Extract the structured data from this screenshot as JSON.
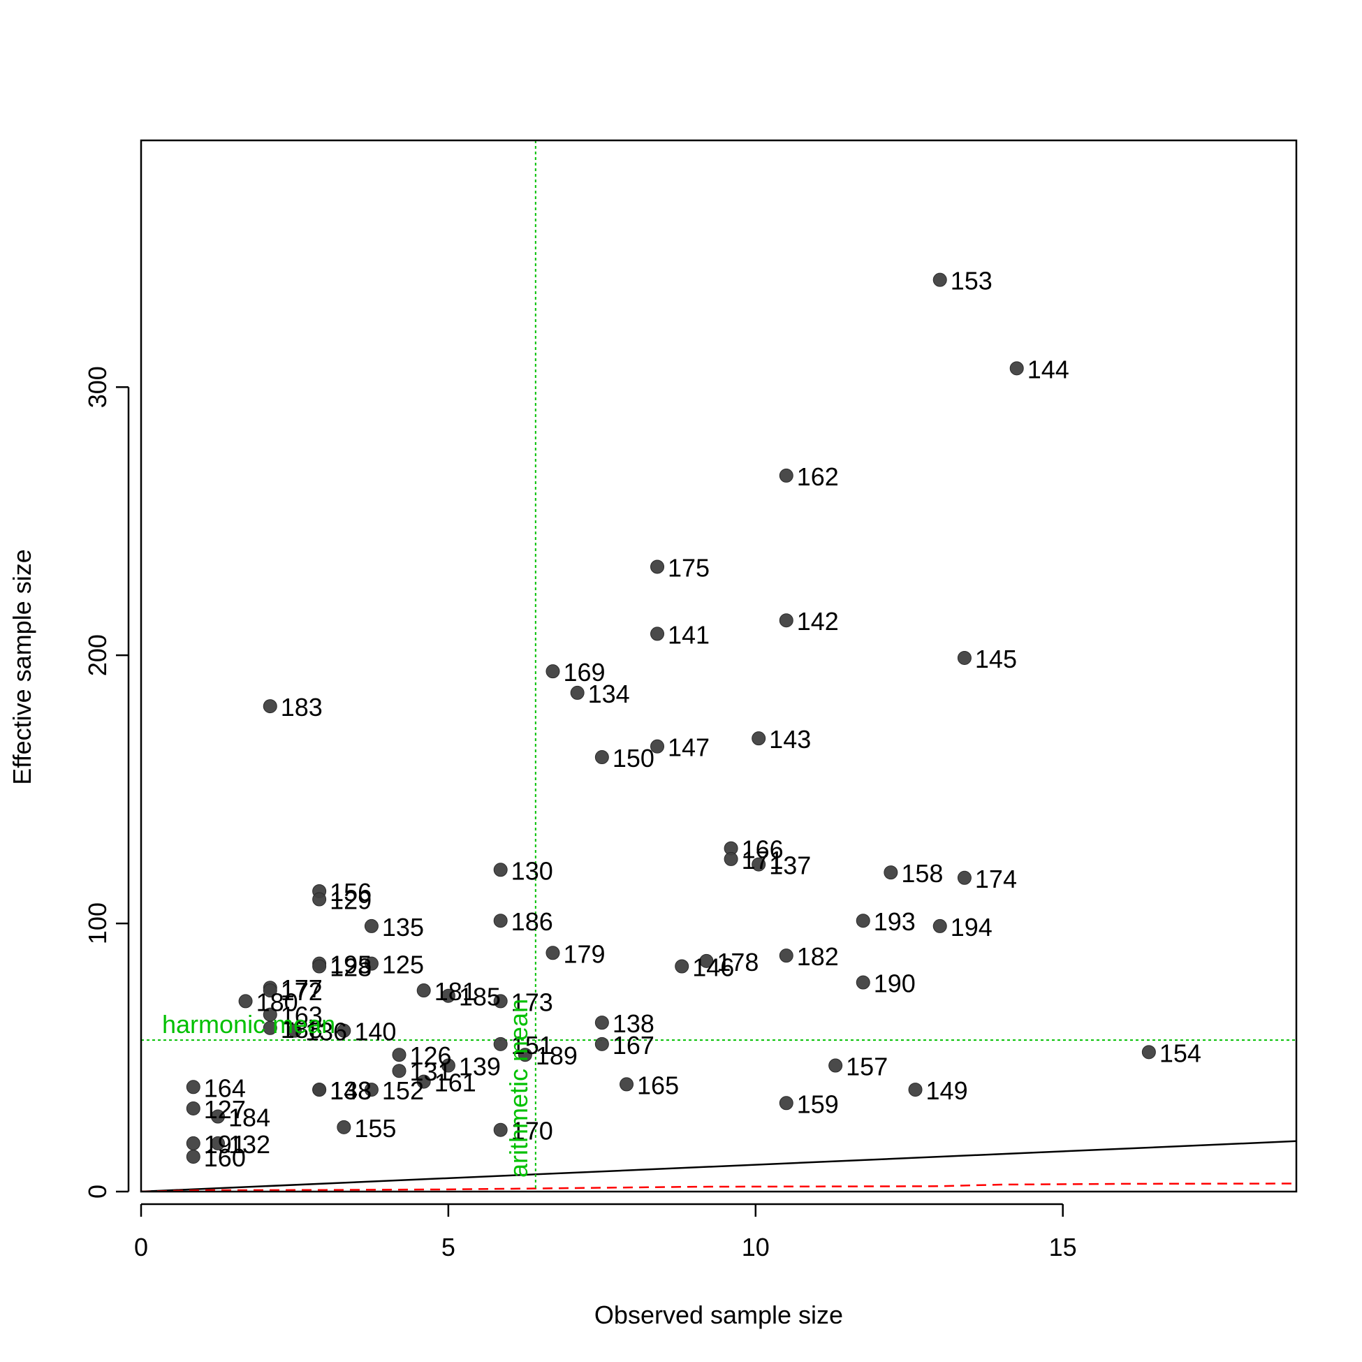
{
  "chart_data": {
    "type": "scatter",
    "xlabel": "Observed sample size",
    "ylabel": "Effective sample size",
    "xlim": [
      0,
      18.8
    ],
    "ylim": [
      0,
      392
    ],
    "xticks": [
      0,
      5,
      10,
      15
    ],
    "xtick_labels": [
      "0",
      "5",
      "10",
      "15"
    ],
    "yticks": [
      0,
      100,
      200,
      300
    ],
    "ytick_labels": [
      "0",
      "100",
      "200",
      "300"
    ],
    "grid": false,
    "legend": "none",
    "point_color": "#404040",
    "points": [
      {
        "label": "153",
        "x": 13.0,
        "y": 340
      },
      {
        "label": "144",
        "x": 14.25,
        "y": 307
      },
      {
        "label": "162",
        "x": 10.5,
        "y": 267
      },
      {
        "label": "175",
        "x": 8.4,
        "y": 233
      },
      {
        "label": "142",
        "x": 10.5,
        "y": 213
      },
      {
        "label": "141",
        "x": 8.4,
        "y": 208
      },
      {
        "label": "145",
        "x": 13.4,
        "y": 199
      },
      {
        "label": "169",
        "x": 6.7,
        "y": 194
      },
      {
        "label": "134",
        "x": 7.1,
        "y": 186
      },
      {
        "label": "183",
        "x": 2.1,
        "y": 181
      },
      {
        "label": "143",
        "x": 10.05,
        "y": 169
      },
      {
        "label": "147",
        "x": 8.4,
        "y": 166
      },
      {
        "label": "150",
        "x": 7.5,
        "y": 162
      },
      {
        "label": "166",
        "x": 9.6,
        "y": 128
      },
      {
        "label": "171",
        "x": 9.6,
        "y": 124
      },
      {
        "label": "137",
        "x": 10.05,
        "y": 122
      },
      {
        "label": "130",
        "x": 5.85,
        "y": 120
      },
      {
        "label": "158",
        "x": 12.2,
        "y": 119
      },
      {
        "label": "174",
        "x": 13.4,
        "y": 117
      },
      {
        "label": "156",
        "x": 2.9,
        "y": 112
      },
      {
        "label": "129",
        "x": 2.9,
        "y": 109
      },
      {
        "label": "186",
        "x": 5.85,
        "y": 101
      },
      {
        "label": "193",
        "x": 11.75,
        "y": 101
      },
      {
        "label": "135",
        "x": 3.75,
        "y": 99
      },
      {
        "label": "194",
        "x": 13.0,
        "y": 99
      },
      {
        "label": "179",
        "x": 6.7,
        "y": 89
      },
      {
        "label": "182",
        "x": 10.5,
        "y": 88
      },
      {
        "label": "178",
        "x": 9.2,
        "y": 86
      },
      {
        "label": "195",
        "x": 2.9,
        "y": 85
      },
      {
        "label": "128",
        "x": 2.9,
        "y": 84
      },
      {
        "label": "125",
        "x": 3.75,
        "y": 85
      },
      {
        "label": "146",
        "x": 8.8,
        "y": 84
      },
      {
        "label": "190",
        "x": 11.75,
        "y": 78
      },
      {
        "label": "177",
        "x": 2.1,
        "y": 76
      },
      {
        "label": "172",
        "x": 2.1,
        "y": 75
      },
      {
        "label": "181",
        "x": 4.6,
        "y": 75
      },
      {
        "label": "185",
        "x": 5.0,
        "y": 73
      },
      {
        "label": "173",
        "x": 5.85,
        "y": 71
      },
      {
        "label": "180",
        "x": 1.7,
        "y": 71
      },
      {
        "label": "163",
        "x": 2.1,
        "y": 66
      },
      {
        "label": "138",
        "x": 7.5,
        "y": 63
      },
      {
        "label": "188",
        "x": 2.1,
        "y": 61
      },
      {
        "label": "136",
        "x": 2.5,
        "y": 60
      },
      {
        "label": "140",
        "x": 3.3,
        "y": 60
      },
      {
        "label": "151",
        "x": 5.85,
        "y": 55
      },
      {
        "label": "167",
        "x": 7.5,
        "y": 55
      },
      {
        "label": "154",
        "x": 16.4,
        "y": 52
      },
      {
        "label": "189",
        "x": 6.25,
        "y": 51
      },
      {
        "label": "126",
        "x": 4.2,
        "y": 51
      },
      {
        "label": "157",
        "x": 11.3,
        "y": 47
      },
      {
        "label": "139",
        "x": 5.0,
        "y": 47
      },
      {
        "label": "131",
        "x": 4.2,
        "y": 45
      },
      {
        "label": "161",
        "x": 4.6,
        "y": 41
      },
      {
        "label": "165",
        "x": 7.9,
        "y": 40
      },
      {
        "label": "164",
        "x": 0.85,
        "y": 39
      },
      {
        "label": "148",
        "x": 2.9,
        "y": 38
      },
      {
        "label": "133",
        "x": 2.9,
        "y": 38
      },
      {
        "label": "152",
        "x": 3.75,
        "y": 38
      },
      {
        "label": "149",
        "x": 12.6,
        "y": 38
      },
      {
        "label": "159",
        "x": 10.5,
        "y": 33
      },
      {
        "label": "127",
        "x": 0.85,
        "y": 31
      },
      {
        "label": "184",
        "x": 1.25,
        "y": 28
      },
      {
        "label": "155",
        "x": 3.3,
        "y": 24
      },
      {
        "label": "170",
        "x": 5.85,
        "y": 23
      },
      {
        "label": "191",
        "x": 0.85,
        "y": 18
      },
      {
        "label": "132",
        "x": 1.25,
        "y": 18
      },
      {
        "label": "160",
        "x": 0.85,
        "y": 13
      }
    ],
    "reference_lines": [
      {
        "label": "harmonic mean",
        "orientation": "horizontal",
        "value": 56.5,
        "color": "#00c000",
        "style": "dotted"
      },
      {
        "label": "arithmetic mean",
        "orientation": "vertical",
        "value": 6.42,
        "color": "#00c000",
        "style": "dotted"
      }
    ],
    "lines": [
      {
        "color": "#000000",
        "style": "solid",
        "points": [
          [
            0,
            0
          ],
          [
            18.8,
            18.8
          ]
        ]
      },
      {
        "color": "#ff0000",
        "style": "dashed",
        "points": [
          [
            0,
            0
          ],
          [
            1,
            0.5
          ],
          [
            3,
            0.6
          ],
          [
            5,
            0.8
          ],
          [
            7,
            1.3
          ],
          [
            9,
            1.8
          ],
          [
            11,
            1.9
          ],
          [
            13,
            2.0
          ],
          [
            14,
            2.6
          ],
          [
            16,
            2.9
          ],
          [
            18.8,
            3.0
          ]
        ]
      }
    ]
  }
}
